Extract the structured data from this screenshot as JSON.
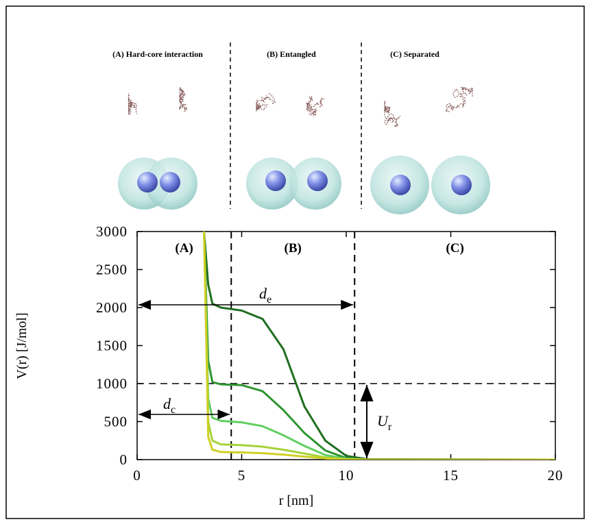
{
  "panels": {
    "hard_core": "(A) Hard-core interaction",
    "entangled": "(B) Entangled",
    "separated": "(C) Separated"
  },
  "chart_data": {
    "type": "line",
    "x_label": "r [nm]",
    "y_label": "V(r) [J/mol]",
    "xlim": [
      0,
      20
    ],
    "xticks": [
      0,
      5,
      10,
      15,
      20
    ],
    "ylim": [
      0,
      3000
    ],
    "yticks": [
      0,
      500,
      1000,
      1500,
      2000,
      2500,
      3000
    ],
    "x": [
      3.2,
      3.4,
      3.6,
      4,
      5,
      6,
      7,
      8,
      9,
      10,
      11,
      20
    ],
    "series": [
      {
        "color": "#1f6e1f",
        "values": [
          3000,
          2300,
          2050,
          2000,
          1960,
          1850,
          1450,
          700,
          250,
          50,
          5,
          0
        ]
      },
      {
        "color": "#2f942f",
        "values": [
          3000,
          1300,
          1020,
          990,
          980,
          900,
          650,
          350,
          120,
          20,
          2,
          0
        ]
      },
      {
        "color": "#5fcf5f",
        "values": [
          3000,
          800,
          550,
          510,
          490,
          440,
          320,
          180,
          60,
          10,
          0,
          0
        ]
      },
      {
        "color": "#a6d23a",
        "values": [
          3000,
          500,
          250,
          200,
          190,
          170,
          130,
          80,
          30,
          5,
          0,
          0
        ]
      },
      {
        "color": "#cfcf24",
        "values": [
          3000,
          300,
          130,
          100,
          95,
          85,
          65,
          40,
          15,
          3,
          0,
          0
        ]
      }
    ],
    "regions": [
      "(A)",
      "(B)",
      "(C)"
    ],
    "dividers": [
      4.5,
      10.4
    ],
    "threshold": 1000,
    "annotations": {
      "d_e": {
        "text": "d",
        "sub": "e"
      },
      "d_c": {
        "text": "d",
        "sub": "c"
      },
      "U_r": {
        "text": "U",
        "sub": "r"
      }
    }
  }
}
